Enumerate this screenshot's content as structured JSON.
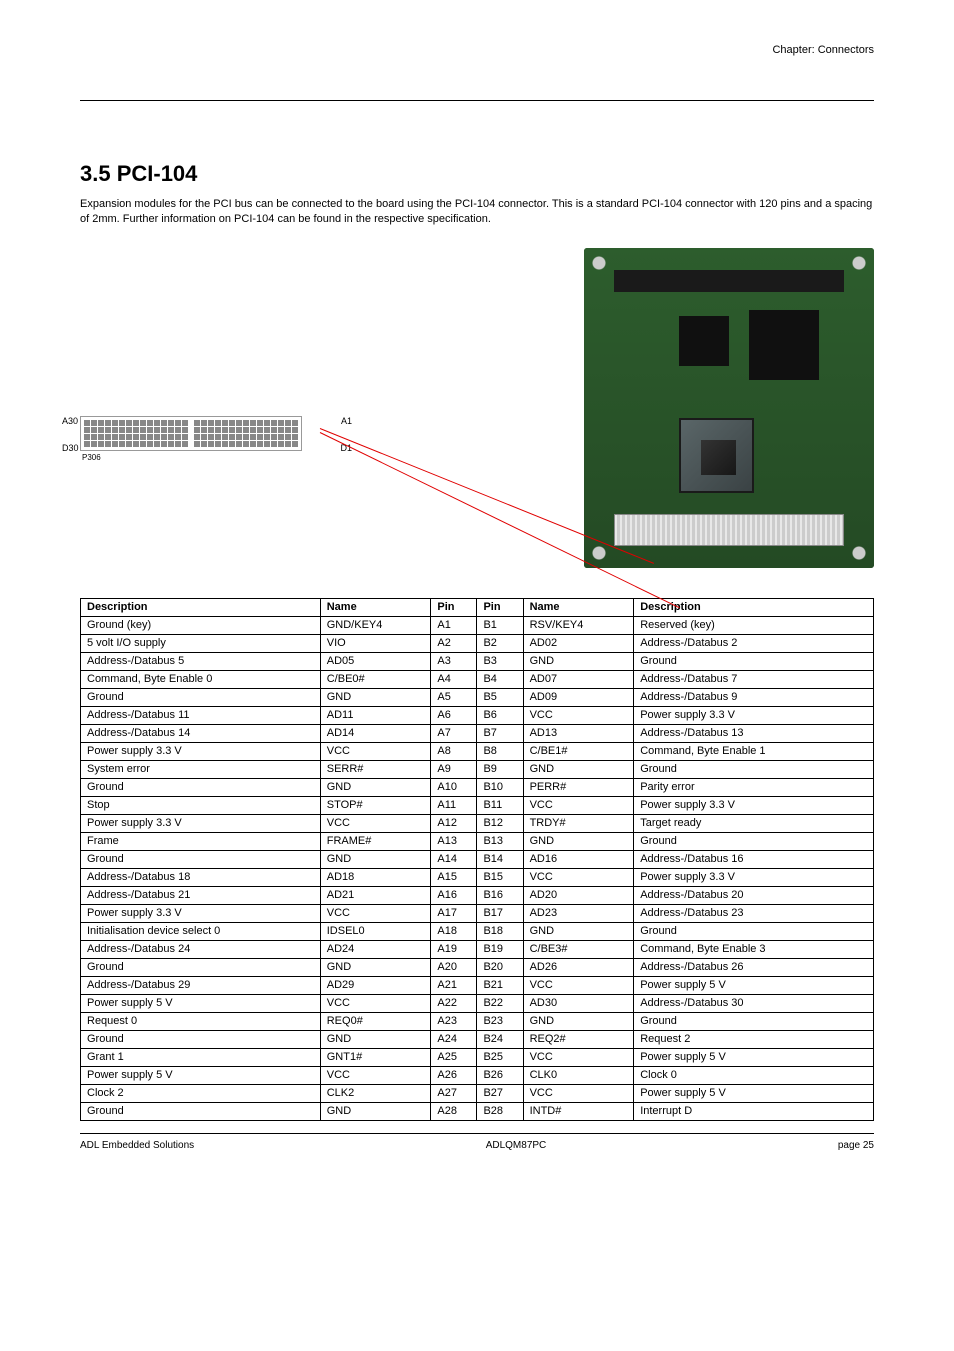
{
  "header": {
    "chapter": "Chapter:",
    "title": "Connectors"
  },
  "section": {
    "heading": "3.5 PCI-104",
    "body": "Expansion modules for the PCI bus can be connected to the board using the PCI-104 connector. This is a standard PCI-104 connector with 120 pins and a spacing of 2mm. Further information on PCI-104 can be found in the respective specification."
  },
  "connector": {
    "label_a_start": "A30",
    "label_d_start": "D30",
    "label_a_end": "A1",
    "label_d_end": "D1",
    "name": "P306"
  },
  "board": {
    "alt": "PC/104 board photo"
  },
  "table": {
    "headers": [
      "Description",
      "Name",
      "Pin",
      "Pin",
      "Name",
      "Description"
    ],
    "rows": [
      [
        "Ground (key)",
        "GND/KEY4",
        "A1",
        "B1",
        "RSV/KEY4",
        "Reserved (key)"
      ],
      [
        "5 volt I/O supply",
        "VIO",
        "A2",
        "B2",
        "AD02",
        "Address-/Databus 2"
      ],
      [
        "Address-/Databus 5",
        "AD05",
        "A3",
        "B3",
        "GND",
        "Ground"
      ],
      [
        "Command, Byte Enable 0",
        "C/BE0#",
        "A4",
        "B4",
        "AD07",
        "Address-/Databus 7"
      ],
      [
        "Ground",
        "GND",
        "A5",
        "B5",
        "AD09",
        "Address-/Databus 9"
      ],
      [
        "Address-/Databus 11",
        "AD11",
        "A6",
        "B6",
        "VCC",
        "Power supply 3.3 V"
      ],
      [
        "Address-/Databus 14",
        "AD14",
        "A7",
        "B7",
        "AD13",
        "Address-/Databus 13"
      ],
      [
        "Power supply 3.3 V",
        "VCC",
        "A8",
        "B8",
        "C/BE1#",
        "Command, Byte Enable 1"
      ],
      [
        "System error",
        "SERR#",
        "A9",
        "B9",
        "GND",
        "Ground"
      ],
      [
        "Ground",
        "GND",
        "A10",
        "B10",
        "PERR#",
        "Parity error"
      ],
      [
        "Stop",
        "STOP#",
        "A11",
        "B11",
        "VCC",
        "Power supply 3.3 V"
      ],
      [
        "Power supply 3.3 V",
        "VCC",
        "A12",
        "B12",
        "TRDY#",
        "Target ready"
      ],
      [
        "Frame",
        "FRAME#",
        "A13",
        "B13",
        "GND",
        "Ground"
      ],
      [
        "Ground",
        "GND",
        "A14",
        "B14",
        "AD16",
        "Address-/Databus 16"
      ],
      [
        "Address-/Databus 18",
        "AD18",
        "A15",
        "B15",
        "VCC",
        "Power supply 3.3 V"
      ],
      [
        "Address-/Databus 21",
        "AD21",
        "A16",
        "B16",
        "AD20",
        "Address-/Databus 20"
      ],
      [
        "Power supply 3.3 V",
        "VCC",
        "A17",
        "B17",
        "AD23",
        "Address-/Databus 23"
      ],
      [
        "Initialisation device select 0",
        "IDSEL0",
        "A18",
        "B18",
        "GND",
        "Ground"
      ],
      [
        "Address-/Databus 24",
        "AD24",
        "A19",
        "B19",
        "C/BE3#",
        "Command, Byte Enable 3"
      ],
      [
        "Ground",
        "GND",
        "A20",
        "B20",
        "AD26",
        "Address-/Databus 26"
      ],
      [
        "Address-/Databus 29",
        "AD29",
        "A21",
        "B21",
        "VCC",
        "Power supply 5 V"
      ],
      [
        "Power supply 5 V",
        "VCC",
        "A22",
        "B22",
        "AD30",
        "Address-/Databus 30"
      ],
      [
        "Request 0",
        "REQ0#",
        "A23",
        "B23",
        "GND",
        "Ground"
      ],
      [
        "Ground",
        "GND",
        "A24",
        "B24",
        "REQ2#",
        "Request 2"
      ],
      [
        "Grant 1",
        "GNT1#",
        "A25",
        "B25",
        "VCC",
        "Power supply 5 V"
      ],
      [
        "Power supply 5 V",
        "VCC",
        "A26",
        "B26",
        "CLK0",
        "Clock 0"
      ],
      [
        "Clock 2",
        "CLK2",
        "A27",
        "B27",
        "VCC",
        "Power supply 5 V"
      ],
      [
        "Ground",
        "GND",
        "A28",
        "B28",
        "INTD#",
        "Interrupt D"
      ]
    ]
  },
  "footer": {
    "left": "ADL Embedded Solutions",
    "center": "ADLQM87PC",
    "right": "page 25"
  }
}
